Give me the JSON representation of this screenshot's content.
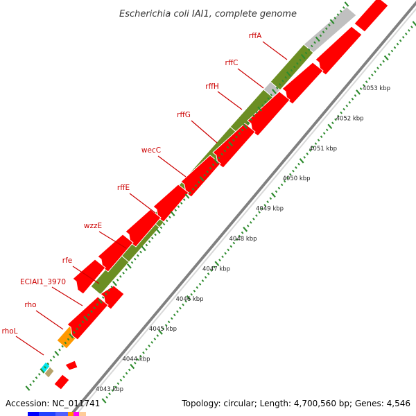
{
  "title": "Escherichia coli IAI1, complete genome",
  "footer": {
    "accession": "Accession: NC_011741",
    "topology": "Topology: circular; Length: 4,700,560 bp; Genes: 4,546"
  },
  "colors": {
    "label_red": "#cc0000",
    "forward_gene": "#6b8e23",
    "reverse_gene": "#ff0000",
    "gray_gene": "#c0c0c0",
    "orange_gene": "#ff9900",
    "tick_green": "#2e8b2e",
    "backbone": "#808080"
  },
  "gene_labels": [
    "rffA",
    "rffC",
    "rffH",
    "rffG",
    "wecC",
    "rffE",
    "wzzE",
    "rfe",
    "ECIAI1_3970",
    "rho",
    "rhoL"
  ],
  "kbp_labels": [
    "4053 kbp",
    "4052 kbp",
    "4051 kbp",
    "4050 kbp",
    "4049 kbp",
    "4048 kbp",
    "4047 kbp",
    "4046 kbp",
    "4045 kbp",
    "4044 kbp",
    "4043 kbp"
  ]
}
